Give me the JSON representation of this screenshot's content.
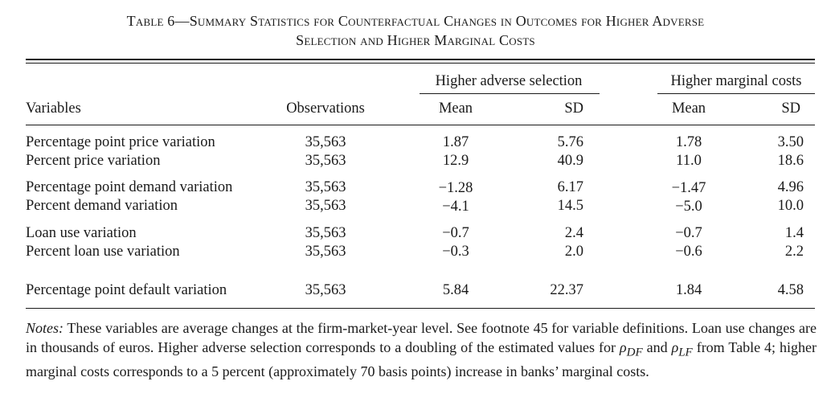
{
  "caption": {
    "line1": "Table 6—Summary Statistics for Counterfactual Changes in Outcomes for Higher Adverse",
    "line2": "Selection and Higher Marginal Costs"
  },
  "header": {
    "group1": "Higher adverse selection",
    "group2": "Higher marginal costs",
    "variables": "Variables",
    "observations": "Observations",
    "mean1": "Mean",
    "sd1": "SD",
    "mean2": "Mean",
    "sd2": "SD"
  },
  "rows": [
    {
      "variable": "Percentage point price variation",
      "obs": "35,563",
      "m1": "1.87",
      "s1": "5.76",
      "m2": "1.78",
      "s2": "3.50"
    },
    {
      "variable": "Percent price variation",
      "obs": "35,563",
      "m1": "12.9",
      "s1": "40.9",
      "m2": "11.0",
      "s2": "18.6"
    },
    {
      "variable": "Percentage point demand variation",
      "obs": "35,563",
      "m1": "−1.28",
      "s1": "6.17",
      "m2": "−1.47",
      "s2": "4.96"
    },
    {
      "variable": "Percent demand variation",
      "obs": "35,563",
      "m1": "−4.1",
      "s1": "14.5",
      "m2": "−5.0",
      "s2": "10.0"
    },
    {
      "variable": "Loan use variation",
      "obs": "35,563",
      "m1": "−0.7",
      "s1": "2.4",
      "m2": "−0.7",
      "s2": "1.4"
    },
    {
      "variable": "Percent loan use variation",
      "obs": "35,563",
      "m1": "−0.3",
      "s1": "2.0",
      "m2": "−0.6",
      "s2": "2.2"
    },
    {
      "variable": "Percentage point default variation",
      "obs": "35,563",
      "m1": "5.84",
      "s1": "22.37",
      "m2": "1.84",
      "s2": "4.58"
    }
  ],
  "notes": {
    "label": "Notes:",
    "text1": " These variables are average changes at the firm-market-year level. See footnote 45 for variable definitions. Loan use changes are in thousands of euros. Higher adverse selection corresponds to a doubling of the estimated values for ",
    "rho_df": "ρ",
    "rho_df_sub": "DF",
    "text2": " and ",
    "rho_lf": "ρ",
    "rho_lf_sub": "LF",
    "text3": " from Table 4; higher marginal costs corresponds to a 5 percent (approximately 70 basis points) increase in banks’ marginal costs."
  }
}
